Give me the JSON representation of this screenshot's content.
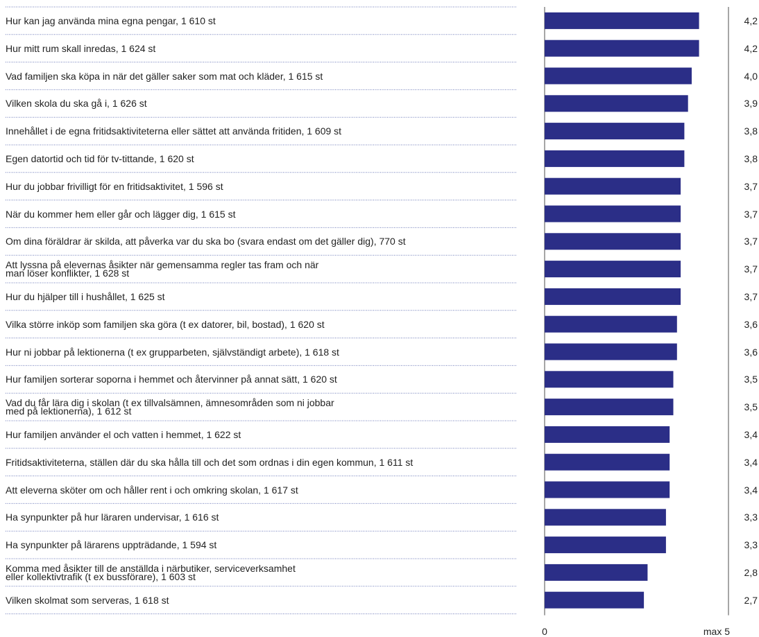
{
  "chart_data": {
    "type": "bar",
    "orientation": "horizontal",
    "categories": [
      "Hur kan jag använda mina egna pengar, 1 610 st",
      "Hur mitt rum skall inredas, 1 624 st",
      "Vad familjen ska köpa in när det gäller saker som mat och kläder, 1 615 st",
      "Vilken skola du ska gå i, 1 626 st",
      "Innehållet i de egna fritidsaktiviteterna eller sättet att använda fritiden, 1 609 st",
      "Egen datortid och tid för tv-tittande, 1 620 st",
      "Hur du jobbar frivilligt för en fritidsaktivitet, 1 596 st",
      "När du kommer hem eller går och lägger dig, 1 615 st",
      "Om dina föräldrar är skilda, att påverka var du ska bo (svara endast om det gäller dig), 770 st",
      "Att lyssna på elevernas åsikter när gemensamma regler tas fram och när\nman löser konflikter, 1 628 st",
      "Hur du hjälper till i hushållet, 1 625 st",
      "Vilka större inköp som familjen ska göra (t ex datorer, bil, bostad), 1 620 st",
      "Hur ni jobbar på lektionerna (t ex grupparbeten, självständigt arbete), 1 618 st",
      "Hur familjen sorterar soporna i hemmet och återvinner på annat sätt, 1 620 st",
      "Vad du får lära dig i skolan (t ex tillvalsämnen, ämnesområden som ni jobbar\nmed på lektionerna), 1 612 st",
      "Hur familjen använder el och vatten i hemmet, 1 622 st",
      "Fritidsaktiviteterna, ställen där du ska hålla till och det som ordnas i din egen kommun, 1 611 st",
      "Att eleverna sköter om och håller rent i och omkring skolan, 1 617 st",
      "Ha synpunkter på hur läraren undervisar, 1 616 st",
      "Ha synpunkter på lärarens uppträdande, 1 594 st",
      "Komma med åsikter till de anställda i närbutiker, serviceverksamhet\neller kollektivtrafik (t ex bussförare), 1 603 st",
      "Vilken skolmat som serveras, 1 618 st"
    ],
    "values": [
      4.2,
      4.2,
      4.0,
      3.9,
      3.8,
      3.8,
      3.7,
      3.7,
      3.7,
      3.7,
      3.7,
      3.6,
      3.6,
      3.5,
      3.5,
      3.4,
      3.4,
      3.4,
      3.3,
      3.3,
      2.8,
      2.7
    ],
    "value_labels": [
      "4,2",
      "4,2",
      "4,0",
      "3,9",
      "3,8",
      "3,8",
      "3,7",
      "3,7",
      "3,7",
      "3,7",
      "3,7",
      "3,6",
      "3,6",
      "3,5",
      "3,5",
      "3,4",
      "3,4",
      "3,4",
      "3,3",
      "3,3",
      "2,8",
      "2,7"
    ],
    "color": "#2b2e87",
    "xlim": [
      0,
      5
    ],
    "xticks": [
      0,
      {
        "value": 5,
        "label": "max 5"
      }
    ]
  }
}
